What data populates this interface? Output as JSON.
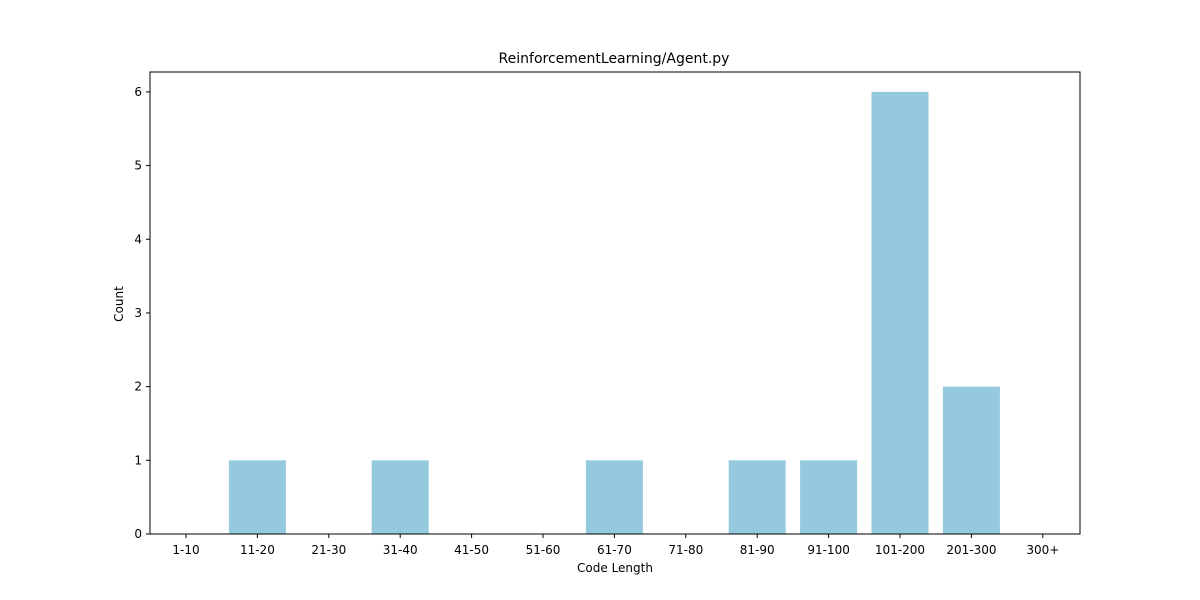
{
  "chart_data": {
    "type": "bar",
    "title": "ReinforcementLearning/Agent.py",
    "xlabel": "Code Length",
    "ylabel": "Count",
    "categories": [
      "1-10",
      "11-20",
      "21-30",
      "31-40",
      "41-50",
      "51-60",
      "61-70",
      "71-80",
      "81-90",
      "91-100",
      "101-200",
      "201-300",
      "300+"
    ],
    "values": [
      0,
      1,
      0,
      1,
      0,
      0,
      1,
      0,
      1,
      1,
      6,
      2,
      0
    ],
    "yticks": [
      "0",
      "1",
      "2",
      "3",
      "4",
      "5",
      "6"
    ],
    "ylim": [
      0,
      6.27
    ],
    "bar_color": "#95c9dd",
    "grid": false
  }
}
